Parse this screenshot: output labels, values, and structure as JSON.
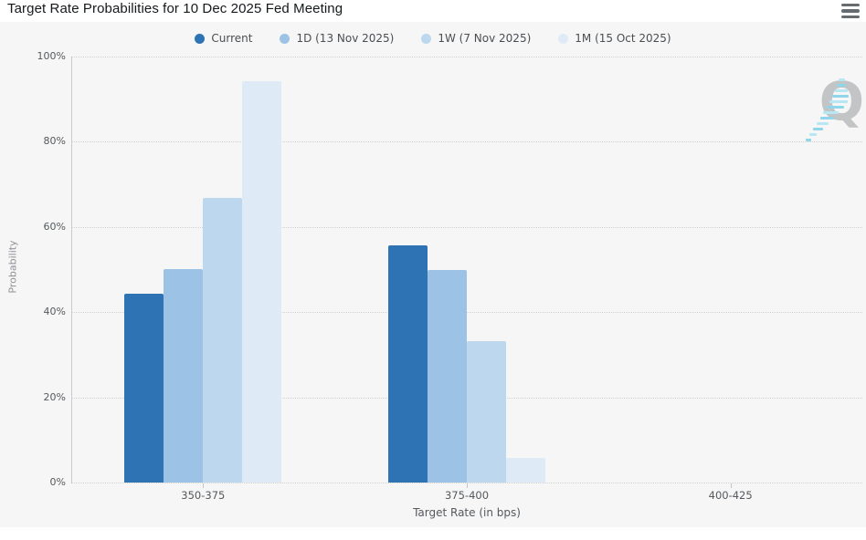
{
  "header": {
    "title": "Target Rate Probabilities for 10 Dec 2025 Fed Meeting"
  },
  "watermark": {
    "letter": "Q"
  },
  "chart_data": {
    "type": "bar",
    "title": "Target Rate Probabilities for 10 Dec 2025 Fed Meeting",
    "categories": [
      "350-375",
      "375-400",
      "400-425"
    ],
    "series": [
      {
        "name": "Current",
        "color": "#2e74b5",
        "values": [
          44.4,
          55.6,
          0
        ]
      },
      {
        "name": "1D (13 Nov 2025)",
        "color": "#9cc3e5",
        "values": [
          50.2,
          49.8,
          0
        ]
      },
      {
        "name": "1W (7 Nov 2025)",
        "color": "#bdd7ee",
        "values": [
          66.9,
          33.1,
          0
        ]
      },
      {
        "name": "1M (15 Oct 2025)",
        "color": "#deebf7",
        "values": [
          94.2,
          5.8,
          0
        ]
      }
    ],
    "xlabel": "Target Rate (in bps)",
    "ylabel": "Probability",
    "ylim": [
      0,
      100
    ],
    "yticks": [
      0,
      20,
      40,
      60,
      80,
      100
    ],
    "ytick_suffix": "%",
    "grid": "dotted-horizontal",
    "legend_position": "top-center",
    "colors": {
      "background": "#f6f6f6",
      "grid": "#d2d2d2",
      "axis_line": "#c9c9c9",
      "tick_text": "#55595d",
      "watermark_q": "#c3c4c5",
      "watermark_dash": "#8fd6ea"
    }
  }
}
